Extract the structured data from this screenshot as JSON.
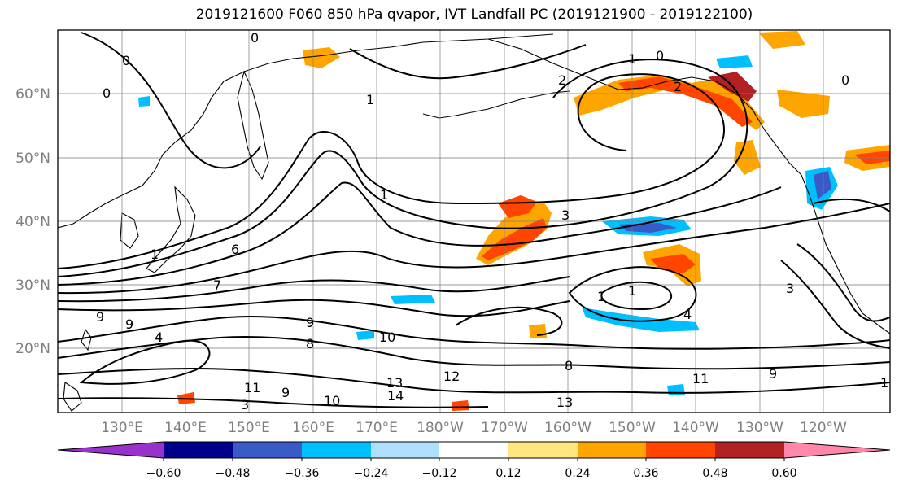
{
  "title": "2019121600 F060 850 hPa qvapor, IVT Landfall PC (2019121900 - 2019122100)",
  "map": {
    "lat_labels": [
      "60°N",
      "50°N",
      "40°N",
      "30°N",
      "20°N"
    ],
    "lon_labels": [
      "130°E",
      "140°E",
      "150°E",
      "160°E",
      "170°E",
      "180°W",
      "170°W",
      "160°W",
      "150°W",
      "140°W",
      "130°W",
      "120°W"
    ],
    "contour_labels": [
      "0",
      "0",
      "2",
      "1",
      "0",
      "2",
      "0",
      "1",
      "1",
      "3",
      "0",
      "6",
      "7",
      "9",
      "9",
      "9",
      "10",
      "4",
      "8",
      "1",
      "1",
      "4",
      "11",
      "9",
      "13",
      "12",
      "14",
      "13",
      "10",
      "11",
      "9",
      "8",
      "1",
      "3",
      "1",
      "3"
    ]
  },
  "colorbar": {
    "ticks": [
      "−0.60",
      "−0.48",
      "−0.36",
      "−0.24",
      "−0.12",
      "0.12",
      "0.24",
      "0.36",
      "0.48",
      "0.60"
    ],
    "colors": [
      "#9932cc",
      "#00008b",
      "#3a5bc7",
      "#00bfff",
      "#b0e0ff",
      "#ffffff",
      "#ffe680",
      "#ffa500",
      "#ff4500",
      "#b22222",
      "#ff88aa"
    ]
  }
}
